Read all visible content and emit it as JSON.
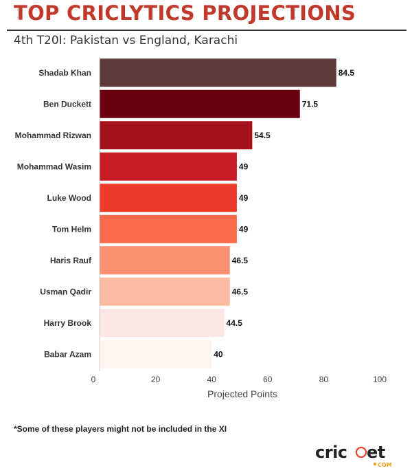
{
  "header": {
    "title": "TOP CRICLYTICS PROJECTIONS",
    "subtitle": "4th T20I: Pakistan vs England, Karachi"
  },
  "footnote": "*Some of these players might not be included in the XI",
  "logo": {
    "text": "cricket.com",
    "icon": "cricket-com-logo"
  },
  "chart_data": {
    "type": "bar",
    "orientation": "horizontal",
    "title": "TOP CRICLYTICS PROJECTIONS",
    "subtitle": "4th T20I: Pakistan vs England, Karachi",
    "xlabel": "Projected Points",
    "ylabel": "",
    "categories": [
      "Shadab Khan",
      "Ben Duckett",
      "Mohammad Rizwan",
      "Mohammad Wasim",
      "Luke Wood",
      "Tom Helm",
      "Haris Rauf",
      "Usman Qadir",
      "Harry Brook",
      "Babar Azam"
    ],
    "values": [
      84.5,
      71.5,
      54.5,
      49,
      49,
      49,
      46.5,
      46.5,
      44.5,
      40
    ],
    "value_labels": [
      "84.5",
      "71.5",
      "54.5",
      "49",
      "49",
      "49",
      "46.5",
      "46.5",
      "44.5",
      "40"
    ],
    "xlim": [
      0,
      100
    ],
    "xticks": [
      0,
      20,
      40,
      60,
      80,
      100
    ],
    "xtick_labels": [
      "0",
      "20",
      "40",
      "60",
      "80",
      "100"
    ],
    "grid": false,
    "bar_colors": [
      "#5f3a3b",
      "#6b0010",
      "#a5111a",
      "#c81c24",
      "#ef3b2c",
      "#fb6a4a",
      "#fc9272",
      "#fcbba1",
      "#fde7e6",
      "#fff5f0"
    ]
  }
}
